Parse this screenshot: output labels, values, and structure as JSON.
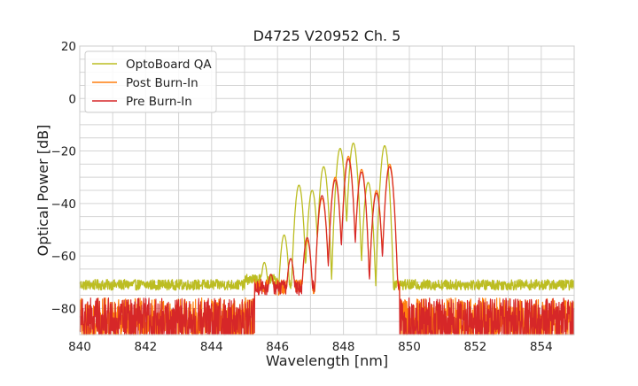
{
  "chart_data": {
    "type": "line",
    "title": "D4725 V20952 Ch. 5",
    "xlabel": "Wavelength [nm]",
    "ylabel": "Optical Power [dB]",
    "xlim": [
      840,
      855
    ],
    "ylim": [
      -90,
      20
    ],
    "x_ticks": [
      840,
      842,
      844,
      846,
      848,
      850,
      852,
      854
    ],
    "y_ticks": [
      20,
      0,
      -20,
      -40,
      -60,
      -80
    ],
    "x_tick_labels": [
      "840",
      "842",
      "844",
      "846",
      "848",
      "850",
      "852",
      "854"
    ],
    "y_tick_labels": [
      "20",
      "0",
      "−20",
      "−40",
      "−60",
      "−80"
    ],
    "grid": true,
    "legend_position": "top-left",
    "noise_floor": {
      "optoboard_qa": -71,
      "post_burn_in": -83,
      "pre_burn_in": -83
    },
    "series": [
      {
        "name": "OptoBoard QA",
        "color": "#bcbd22",
        "peaks": [
          {
            "x": 845.6,
            "y": -62.5
          },
          {
            "x": 846.2,
            "y": -52
          },
          {
            "x": 846.65,
            "y": -33
          },
          {
            "x": 847.05,
            "y": -35
          },
          {
            "x": 847.4,
            "y": -26
          },
          {
            "x": 847.9,
            "y": -19
          },
          {
            "x": 848.3,
            "y": -17
          },
          {
            "x": 848.75,
            "y": -32
          },
          {
            "x": 849.25,
            "y": -18
          }
        ]
      },
      {
        "name": "Post Burn-In",
        "color": "#ff7f0e",
        "peaks": [
          {
            "x": 845.8,
            "y": -67
          },
          {
            "x": 846.4,
            "y": -61
          },
          {
            "x": 846.9,
            "y": -54
          },
          {
            "x": 847.35,
            "y": -38
          },
          {
            "x": 847.75,
            "y": -30
          },
          {
            "x": 848.15,
            "y": -22
          },
          {
            "x": 848.55,
            "y": -27
          },
          {
            "x": 849.0,
            "y": -35
          },
          {
            "x": 849.4,
            "y": -25
          }
        ]
      },
      {
        "name": "Pre Burn-In",
        "color": "#d62728",
        "peaks": [
          {
            "x": 845.8,
            "y": -67
          },
          {
            "x": 846.4,
            "y": -61
          },
          {
            "x": 846.9,
            "y": -53
          },
          {
            "x": 847.35,
            "y": -37
          },
          {
            "x": 847.75,
            "y": -31
          },
          {
            "x": 848.15,
            "y": -23
          },
          {
            "x": 848.55,
            "y": -28
          },
          {
            "x": 849.0,
            "y": -36
          },
          {
            "x": 849.4,
            "y": -26
          }
        ]
      }
    ]
  }
}
